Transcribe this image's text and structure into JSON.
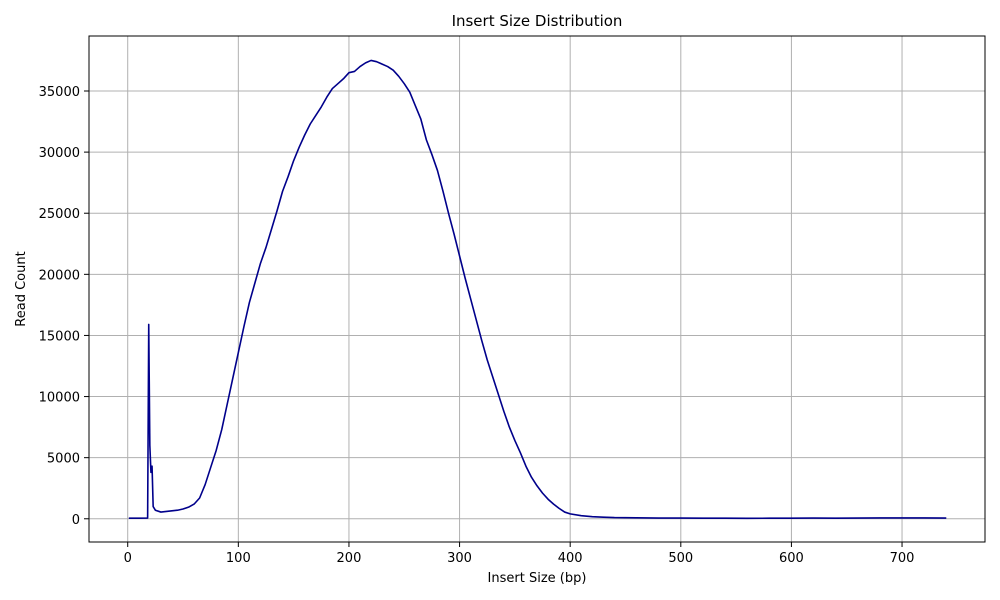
{
  "chart_data": {
    "type": "line",
    "title": "Insert Size Distribution",
    "xlabel": "Insert Size (bp)",
    "ylabel": "Read Count",
    "xlim": [
      -35,
      775
    ],
    "ylim": [
      -1900,
      39500
    ],
    "xticks": [
      0,
      100,
      200,
      300,
      400,
      500,
      600,
      700
    ],
    "yticks": [
      0,
      5000,
      10000,
      15000,
      20000,
      25000,
      30000,
      35000
    ],
    "grid": true,
    "line_color": "#00008b",
    "series": [
      {
        "name": "",
        "x": [
          1,
          10,
          18,
          19,
          20,
          21,
          22,
          23,
          25,
          30,
          35,
          40,
          45,
          50,
          55,
          60,
          65,
          70,
          75,
          80,
          85,
          90,
          95,
          100,
          105,
          110,
          115,
          120,
          125,
          130,
          135,
          140,
          145,
          150,
          155,
          160,
          165,
          170,
          175,
          180,
          185,
          190,
          195,
          200,
          205,
          210,
          215,
          220,
          225,
          230,
          235,
          240,
          245,
          250,
          255,
          260,
          265,
          270,
          275,
          280,
          285,
          290,
          295,
          300,
          305,
          310,
          315,
          320,
          325,
          330,
          335,
          340,
          345,
          350,
          355,
          360,
          365,
          370,
          375,
          380,
          385,
          390,
          395,
          400,
          410,
          420,
          430,
          440,
          450,
          460,
          470,
          480,
          500,
          520,
          540,
          560,
          580,
          600,
          620,
          640,
          660,
          680,
          700,
          720,
          740
        ],
        "y": [
          50,
          50,
          60,
          15900,
          6000,
          3800,
          4300,
          1000,
          700,
          550,
          600,
          650,
          700,
          800,
          950,
          1200,
          1700,
          2800,
          4200,
          5600,
          7300,
          9400,
          11500,
          13600,
          15700,
          17700,
          19300,
          20900,
          22200,
          23700,
          25200,
          26800,
          28000,
          29300,
          30400,
          31400,
          32300,
          33000,
          33700,
          34500,
          35200,
          35600,
          36000,
          36500,
          36600,
          37000,
          37300,
          37500,
          37400,
          37200,
          37000,
          36700,
          36200,
          35600,
          34900,
          33800,
          32700,
          31000,
          29800,
          28500,
          26800,
          25000,
          23300,
          21500,
          19700,
          18000,
          16300,
          14600,
          13000,
          11600,
          10200,
          8800,
          7500,
          6400,
          5400,
          4300,
          3400,
          2700,
          2100,
          1600,
          1200,
          850,
          550,
          400,
          250,
          170,
          130,
          100,
          90,
          80,
          70,
          60,
          55,
          50,
          45,
          40,
          45,
          50,
          55,
          50,
          60,
          65,
          70,
          70,
          60
        ]
      }
    ]
  }
}
